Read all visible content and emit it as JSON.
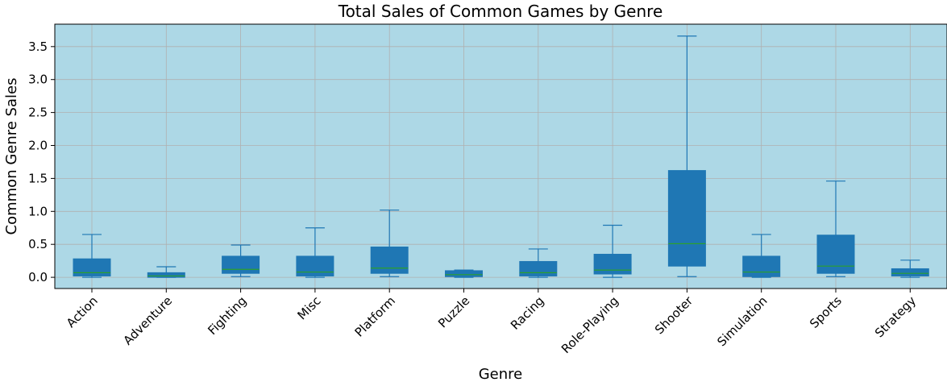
{
  "chart_data": {
    "type": "box",
    "title": "Total Sales of Common Games by Genre",
    "xlabel": "Genre",
    "ylabel": "Common Genre Sales",
    "ylim": [
      -0.17,
      3.84
    ],
    "yticks": [
      "0.0",
      "0.5",
      "1.0",
      "1.5",
      "2.0",
      "2.5",
      "3.0",
      "3.5"
    ],
    "grid": true,
    "colors": {
      "plot_background": "#add8e6",
      "box_fill": "#1f77b4",
      "box_edge": "#1f77b4",
      "median": "#2ca02c",
      "grid": "#b0b0b0"
    },
    "categories": [
      "Action",
      "Adventure",
      "Fighting",
      "Misc",
      "Platform",
      "Puzzle",
      "Racing",
      "Role-Playing",
      "Shooter",
      "Simulation",
      "Sports",
      "Strategy"
    ],
    "boxes": [
      {
        "whisker_low": 0.0,
        "q1": 0.02,
        "median": 0.07,
        "q3": 0.28,
        "whisker_high": 0.65
      },
      {
        "whisker_low": 0.0,
        "q1": 0.0,
        "median": 0.02,
        "q3": 0.07,
        "whisker_high": 0.16
      },
      {
        "whisker_low": 0.01,
        "q1": 0.06,
        "median": 0.12,
        "q3": 0.32,
        "whisker_high": 0.49
      },
      {
        "whisker_low": 0.0,
        "q1": 0.02,
        "median": 0.08,
        "q3": 0.32,
        "whisker_high": 0.75
      },
      {
        "whisker_low": 0.01,
        "q1": 0.06,
        "median": 0.14,
        "q3": 0.46,
        "whisker_high": 1.02
      },
      {
        "whisker_low": 0.0,
        "q1": 0.01,
        "median": 0.04,
        "q3": 0.1,
        "whisker_high": 0.11
      },
      {
        "whisker_low": 0.0,
        "q1": 0.02,
        "median": 0.07,
        "q3": 0.24,
        "whisker_high": 0.43
      },
      {
        "whisker_low": 0.0,
        "q1": 0.05,
        "median": 0.11,
        "q3": 0.35,
        "whisker_high": 0.79
      },
      {
        "whisker_low": 0.01,
        "q1": 0.17,
        "median": 0.51,
        "q3": 1.62,
        "whisker_high": 3.66
      },
      {
        "whisker_low": 0.0,
        "q1": 0.01,
        "median": 0.08,
        "q3": 0.32,
        "whisker_high": 0.65
      },
      {
        "whisker_low": 0.01,
        "q1": 0.06,
        "median": 0.17,
        "q3": 0.64,
        "whisker_high": 1.46
      },
      {
        "whisker_low": 0.0,
        "q1": 0.02,
        "median": 0.06,
        "q3": 0.13,
        "whisker_high": 0.26
      }
    ]
  }
}
